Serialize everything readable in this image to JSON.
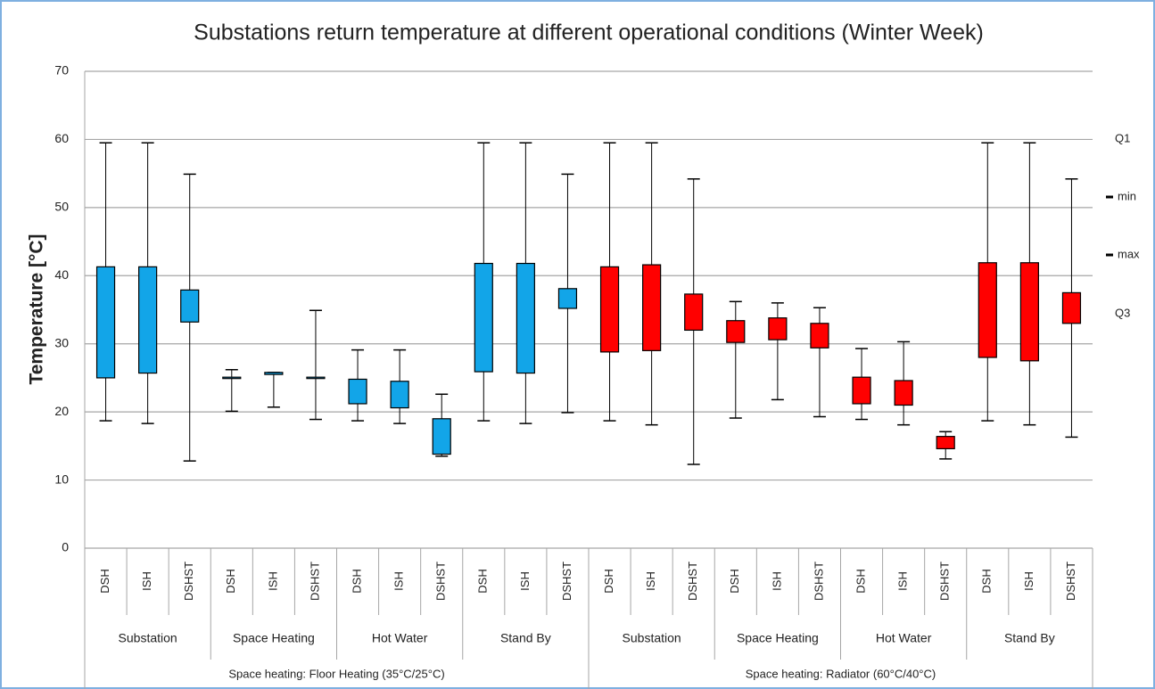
{
  "chart_data": {
    "type": "box",
    "title": "Substations return temperature at different operational conditions (Winter Week)",
    "y_label": "Temperature [°C]",
    "ylim": [
      0,
      70
    ],
    "yticks": [
      0,
      10,
      20,
      30,
      40,
      50,
      60,
      70
    ],
    "grid": true,
    "groups": [
      {
        "label": "Space heating: Floor Heating (35°C/25°C)",
        "color": "#12a5e8"
      },
      {
        "label": "Space heating: Radiator (60°C/40°C)",
        "color": "#ff0000"
      }
    ],
    "subgroups": [
      "Substation",
      "Space Heating",
      "Hot Water",
      "Stand By",
      "Substation",
      "Space Heating",
      "Hot Water",
      "Stand By"
    ],
    "categories": [
      "DSH",
      "ISH",
      "DSHST",
      "DSH",
      "ISH",
      "DSHST",
      "DSH",
      "ISH",
      "DSHST",
      "DSH",
      "ISH",
      "DSHST",
      "DSH",
      "ISH",
      "DSHST",
      "DSH",
      "ISH",
      "DSHST",
      "DSH",
      "ISH",
      "DSHST",
      "DSH",
      "ISH",
      "DSHST"
    ],
    "min": [
      18.7,
      18.3,
      12.8,
      20.1,
      20.7,
      18.9,
      18.7,
      18.3,
      13.5,
      18.7,
      18.3,
      19.9,
      18.7,
      18.1,
      12.3,
      19.1,
      21.8,
      19.3,
      18.9,
      18.1,
      13.1,
      18.7,
      18.1,
      16.3
    ],
    "q1": [
      25.0,
      25.7,
      33.2,
      24.9,
      25.5,
      24.9,
      21.2,
      20.6,
      13.8,
      25.9,
      25.7,
      35.2,
      28.8,
      29.0,
      32.0,
      30.2,
      30.6,
      29.4,
      21.2,
      21.0,
      14.6,
      28.0,
      27.5,
      33.0
    ],
    "q3": [
      41.3,
      41.3,
      37.9,
      25.1,
      25.8,
      25.1,
      24.8,
      24.5,
      19.0,
      41.8,
      41.8,
      38.1,
      41.3,
      41.6,
      37.3,
      33.4,
      33.8,
      33.0,
      25.1,
      24.6,
      16.4,
      41.9,
      41.9,
      37.5
    ],
    "max": [
      59.5,
      59.5,
      54.9,
      26.2,
      25.8,
      34.9,
      29.1,
      29.1,
      22.6,
      59.5,
      59.5,
      54.9,
      59.5,
      59.5,
      54.2,
      36.2,
      36.0,
      35.3,
      29.3,
      30.3,
      17.1,
      59.5,
      59.5,
      54.2
    ],
    "legend": [
      {
        "name": "Q1",
        "marker": "none"
      },
      {
        "name": "min",
        "marker": "dash"
      },
      {
        "name": "max",
        "marker": "dash"
      },
      {
        "name": "Q3",
        "marker": "none"
      }
    ]
  }
}
